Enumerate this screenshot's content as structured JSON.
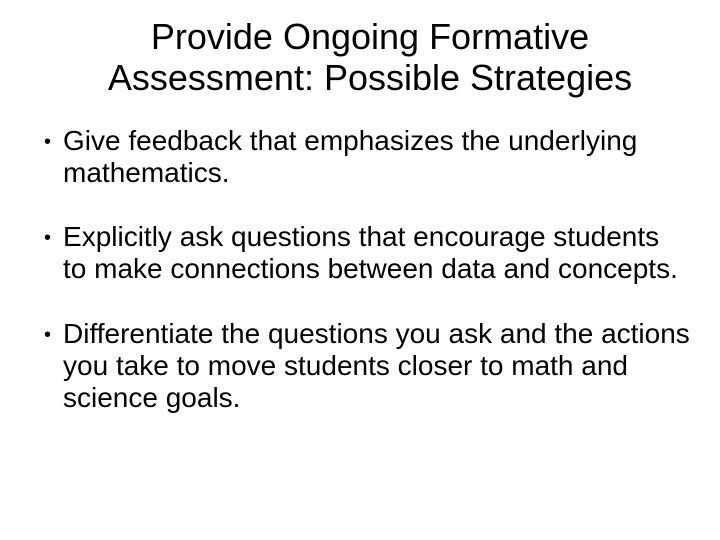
{
  "title_line1": "Provide Ongoing Formative",
  "title_line2": "Assessment: Possible Strategies",
  "bullets": [
    {
      "text": "Give feedback that emphasizes the underlying mathematics."
    },
    {
      "text": "Explicitly ask questions that encourage students to make connections between data and concepts."
    },
    {
      "text": "Differentiate the questions you ask and the actions you take to move students closer to math and science goals."
    }
  ],
  "styling": {
    "background_color": "#ffffff",
    "text_color": "#000000",
    "title_fontsize": 36,
    "body_fontsize": 28,
    "bullet_marker": "•",
    "font_family": "Arial"
  }
}
